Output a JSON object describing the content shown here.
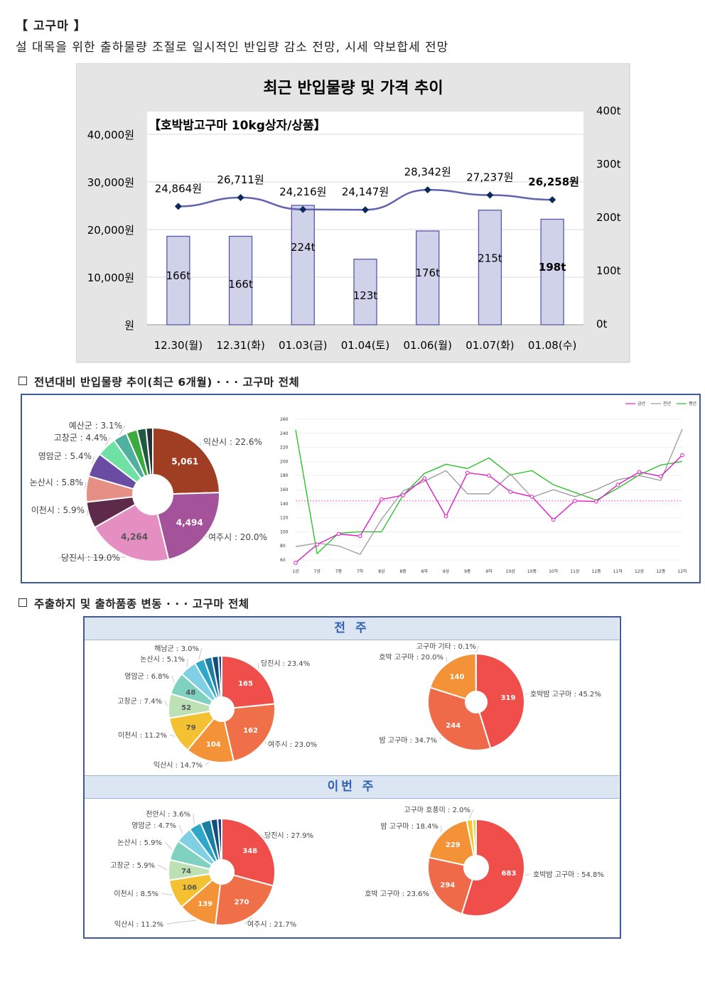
{
  "heading": "【 고구마 】",
  "headline": "설 대목을 위한 출하물량 조절로 일시적인 반입량 감소 전망, 시세 약보합세 전망",
  "sections": {
    "trend_title": "전년대비 반입물량 추이(최근 6개월)  · · · 고구마 전체",
    "origin_title": "주출하지 및 출하품종 변동  · · · 고구마 전체",
    "prev_week": "전 주",
    "this_week": "이번 주"
  },
  "chart_data": [
    {
      "type": "bar",
      "title": "최근 반입물량 및 가격 추이",
      "subtitle": "【호박밤고구마 10kg상자/상품】",
      "categories": [
        "12.30(월)",
        "12.31(화)",
        "01.03(금)",
        "01.04(토)",
        "01.06(월)",
        "01.07(화)",
        "01.08(수)"
      ],
      "series": [
        {
          "type": "bar",
          "axis": "right",
          "values": [
            166,
            166,
            224,
            123,
            176,
            215,
            198
          ],
          "labels": [
            "166t",
            "166t",
            "224t",
            "123t",
            "176t",
            "215t",
            "198t"
          ]
        },
        {
          "type": "line",
          "axis": "left",
          "values": [
            24864,
            26711,
            24216,
            24147,
            28342,
            27237,
            26258
          ],
          "labels": [
            "24,864원",
            "26,711원",
            "24,216원",
            "24,147원",
            "28,342원",
            "27,237원",
            "26,258원"
          ]
        }
      ],
      "left_axis": {
        "ticks": [
          "원",
          "10,000원",
          "20,000원",
          "30,000원",
          "40,000원"
        ],
        "range": [
          0,
          40000
        ]
      },
      "right_axis": {
        "ticks": [
          "0t",
          "100t",
          "200t",
          "300t",
          "400t"
        ],
        "range": [
          0,
          400
        ]
      },
      "grid": true,
      "colors": {
        "bar": "#d0d2ea",
        "bar_border": "#5757a8",
        "line": "#6064b0",
        "marker": "#0d2a5c",
        "background": "#e5e5e5"
      }
    },
    {
      "type": "pie",
      "values": [
        22.6,
        20.0,
        19.0,
        5.9,
        5.8,
        5.4,
        4.4,
        3.1,
        2.5,
        2.0,
        1.5
      ],
      "labels": [
        "익산시 : 22.6%",
        "여주시 : 20.0%",
        "당진시 : 19.0%",
        "이천시 : 5.9%",
        "논산시 : 5.8%",
        "영암군 : 5.4%",
        "고창군 : 4.4%",
        "예산군 : 3.1%",
        "",
        "",
        ""
      ],
      "inner_values": [
        "5,061",
        "4,494",
        "4,264",
        "",
        "",
        "",
        "",
        "",
        "",
        "",
        ""
      ],
      "colors": [
        "#a03e23",
        "#a4539a",
        "#e58ec1",
        "#5e2a4a",
        "#e58f85",
        "#6a4ca3",
        "#6fe1a4",
        "#4fb0a0",
        "#3caa3c",
        "#1f5a40",
        "#263238"
      ]
    },
    {
      "type": "line",
      "legend": [
        "금년",
        "전년",
        "평년"
      ],
      "legend_position": "top-right",
      "x": [
        "1상",
        "7상",
        "7중",
        "7하",
        "8상",
        "8중",
        "8하",
        "9상",
        "9중",
        "9하",
        "10상",
        "10중",
        "10하",
        "11상",
        "11중",
        "11하",
        "12상",
        "12중",
        "12하"
      ],
      "y_ticks": [
        "60",
        "80",
        "100",
        "120",
        "140",
        "160",
        "180",
        "200",
        "220",
        "240",
        "260"
      ],
      "ylim": [
        60,
        260
      ],
      "series": [
        {
          "name": "금년",
          "color": "#e01cc8",
          "values": [
            56,
            82,
            97,
            94,
            146,
            152,
            176,
            122,
            184,
            180,
            157,
            150,
            117,
            144,
            143,
            167,
            185,
            179,
            209
          ]
        },
        {
          "name": "전년",
          "color": "#9a9a9a",
          "values": [
            79,
            84,
            80,
            68,
            118,
            158,
            172,
            187,
            154,
            154,
            182,
            149,
            160,
            150,
            160,
            174,
            180,
            173,
            246
          ]
        },
        {
          "name": "평년",
          "color": "#20c020",
          "values": [
            245,
            69,
            98,
            100,
            100,
            152,
            183,
            196,
            190,
            205,
            181,
            187,
            167,
            156,
            145,
            162,
            181,
            195,
            200
          ]
        }
      ],
      "reference_line": 144
    },
    {
      "type": "pie",
      "period": "전 주",
      "values": [
        23.4,
        23.0,
        14.7,
        11.2,
        7.4,
        6.8,
        5.1,
        3.0,
        2.4,
        2.0,
        1.0
      ],
      "labels": [
        "당진시 : 23.4%",
        "여주시 : 23.0%",
        "익산시 : 14.7%",
        "이천시 : 11.2%",
        "고창군 : 7.4%",
        "영암군 : 6.8%",
        "논산시 : 5.1%",
        "해남군 : 3.0%",
        "",
        "",
        ""
      ],
      "inner_values": [
        "165",
        "162",
        "104",
        "79",
        "52",
        "48",
        "",
        "",
        "",
        "",
        ""
      ],
      "colors": [
        "#ef4e4b",
        "#ef7048",
        "#f39237",
        "#f4c133",
        "#bde0b4",
        "#7fd2c0",
        "#7fd0e5",
        "#2fa7c8",
        "#1c7fa4",
        "#114d7a",
        "#1f3c8f"
      ]
    },
    {
      "type": "pie",
      "period": "전 주",
      "values": [
        45.2,
        34.7,
        20.0,
        0.1
      ],
      "labels": [
        "호박밤 고구마 : 45.2%",
        "밤 고구마 : 34.7%",
        "호박 고구마 : 20.0%",
        "고구마 기타 : 0.1%"
      ],
      "inner_values": [
        "319",
        "244",
        "140",
        ""
      ],
      "colors": [
        "#ef4e4b",
        "#ef6a48",
        "#f39237",
        "#f5c531"
      ]
    },
    {
      "type": "pie",
      "period": "이번 주",
      "values": [
        27.9,
        21.7,
        11.2,
        8.5,
        5.9,
        5.9,
        4.7,
        3.6,
        3.0,
        2.0,
        1.2
      ],
      "labels": [
        "당진시 : 27.9%",
        "여주시 : 21.7%",
        "익산시 : 11.2%",
        "이천시 : 8.5%",
        "고창군 : 5.9%",
        "논산시 : 5.9%",
        "영암군 : 4.7%",
        "천안시 : 3.6%",
        "",
        "",
        ""
      ],
      "inner_values": [
        "348",
        "270",
        "139",
        "106",
        "74",
        "",
        "",
        "",
        "",
        "",
        ""
      ],
      "colors": [
        "#ef4e4b",
        "#ef7048",
        "#f39237",
        "#f4c133",
        "#bde0b4",
        "#7fd2c0",
        "#7fd0e5",
        "#2fa7c8",
        "#1c7fa4",
        "#114d7a",
        "#1f3c8f"
      ]
    },
    {
      "type": "pie",
      "period": "이번 주",
      "values": [
        54.8,
        23.6,
        18.4,
        2.0,
        1.2
      ],
      "labels": [
        "호박밤 고구마 : 54.8%",
        "호박 고구마 : 23.6%",
        "밤 고구마 : 18.4%",
        "고구마 호풍미 : 2.0%",
        ""
      ],
      "inner_values": [
        "683",
        "294",
        "229",
        "",
        ""
      ],
      "colors": [
        "#ef4e4b",
        "#ef6a48",
        "#f39237",
        "#f5c531",
        "#e0d84a"
      ]
    }
  ]
}
